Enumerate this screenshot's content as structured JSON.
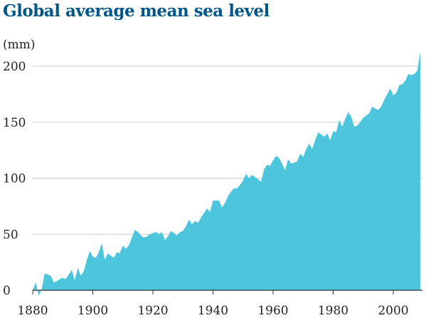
{
  "colors": {
    "title": "#005689",
    "area": "#4dc6dd",
    "grid": "#cccccc",
    "axis": "#333333",
    "text": "#222222"
  },
  "chart_data": {
    "type": "area",
    "title": "Global average mean sea level",
    "ylabel": "(mm)",
    "xlabel": "",
    "xlim": [
      1880,
      2009
    ],
    "ylim": [
      0,
      215
    ],
    "grid": "horizontal",
    "legend": "none",
    "x_ticks": [
      1880,
      1900,
      1920,
      1940,
      1960,
      1980,
      2000
    ],
    "y_ticks": [
      0,
      50,
      100,
      150,
      200
    ],
    "series": [
      {
        "x": [
          1880,
          1881,
          1882,
          1883,
          1884,
          1885,
          1886,
          1887,
          1888,
          1889,
          1890,
          1891,
          1892,
          1893,
          1894,
          1895,
          1896,
          1897,
          1898,
          1899,
          1900,
          1901,
          1902,
          1903,
          1904,
          1905,
          1906,
          1907,
          1908,
          1909,
          1910,
          1911,
          1912,
          1913,
          1914,
          1915,
          1916,
          1917,
          1918,
          1919,
          1920,
          1921,
          1922,
          1923,
          1924,
          1925,
          1926,
          1927,
          1928,
          1929,
          1930,
          1931,
          1932,
          1933,
          1934,
          1935,
          1936,
          1937,
          1938,
          1939,
          1940,
          1941,
          1942,
          1943,
          1944,
          1945,
          1946,
          1947,
          1948,
          1949,
          1950,
          1951,
          1952,
          1953,
          1954,
          1955,
          1956,
          1957,
          1958,
          1959,
          1960,
          1961,
          1962,
          1963,
          1964,
          1965,
          1966,
          1967,
          1968,
          1969,
          1970,
          1971,
          1972,
          1973,
          1974,
          1975,
          1976,
          1977,
          1978,
          1979,
          1980,
          1981,
          1982,
          1983,
          1984,
          1985,
          1986,
          1987,
          1988,
          1989,
          1990,
          1991,
          1992,
          1993,
          1994,
          1995,
          1996,
          1997,
          1998,
          1999,
          2000,
          2001,
          2002,
          2003,
          2004,
          2005,
          2006,
          2007,
          2008,
          2009
        ],
        "values": [
          0,
          7,
          -5,
          1,
          15,
          14,
          13,
          7,
          8,
          10,
          11,
          10,
          14,
          18,
          9,
          20,
          13,
          17,
          27,
          35,
          30,
          29,
          34,
          42,
          27,
          33,
          31,
          29,
          34,
          33,
          40,
          37,
          40,
          47,
          54,
          52,
          49,
          47,
          48,
          50,
          51,
          52,
          50,
          52,
          45,
          48,
          53,
          51,
          49,
          52,
          53,
          57,
          63,
          59,
          62,
          60,
          65,
          69,
          73,
          70,
          80,
          80,
          80,
          74,
          78,
          84,
          88,
          91,
          91,
          94,
          98,
          104,
          100,
          103,
          101,
          99,
          97,
          108,
          112,
          111,
          116,
          120,
          118,
          113,
          107,
          117,
          113,
          114,
          115,
          122,
          119,
          126,
          131,
          126,
          134,
          141,
          139,
          137,
          140,
          134,
          142,
          141,
          152,
          146,
          153,
          159,
          155,
          146,
          147,
          150,
          154,
          156,
          158,
          164,
          162,
          161,
          164,
          170,
          175,
          180,
          174,
          176,
          183,
          184,
          187,
          193,
          192,
          193,
          196,
          213
        ]
      }
    ]
  }
}
